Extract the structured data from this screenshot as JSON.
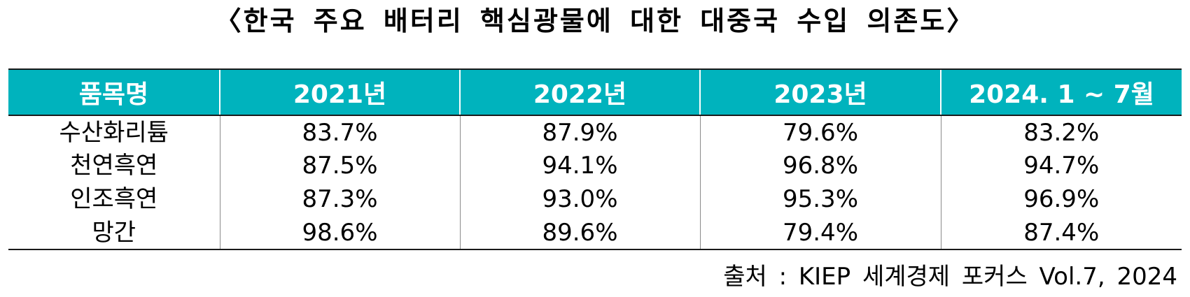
{
  "title": "〈한국 주요 배터리 핵심광물에 대한 대중국 수입 의존도〉",
  "table": {
    "headers": [
      "품목명",
      "2021년",
      "2022년",
      "2023년",
      "2024. 1 ~ 7월"
    ],
    "rows": [
      [
        "수산화리튬",
        "83.7%",
        "87.9%",
        "79.6%",
        "83.2%"
      ],
      [
        "천연흑연",
        "87.5%",
        "94.1%",
        "96.8%",
        "94.7%"
      ],
      [
        "인조흑연",
        "87.3%",
        "93.0%",
        "95.3%",
        "96.9%"
      ],
      [
        "망간",
        "98.6%",
        "89.6%",
        "79.4%",
        "87.4%"
      ]
    ]
  },
  "source": "출처 : KIEP 세계경제 포커스 Vol.7, 2024",
  "colors": {
    "header_bg": "#00b3bd",
    "header_text": "#ffffff",
    "rule": "#1a1a1a"
  }
}
